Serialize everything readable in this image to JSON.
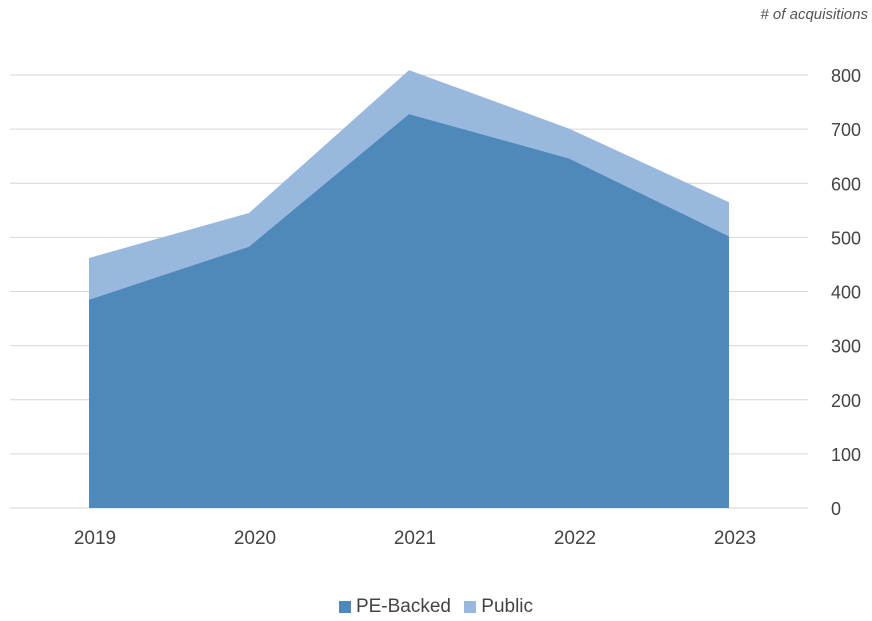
{
  "chart_data": {
    "type": "area",
    "stacked": true,
    "ylabel": "# of acquisitions",
    "xlabel": "",
    "title": "",
    "categories": [
      "2019",
      "2020",
      "2021",
      "2022",
      "2023"
    ],
    "ylim": [
      0,
      800
    ],
    "yticks": [
      "0",
      "100",
      "200",
      "300",
      "400",
      "500",
      "600",
      "700",
      "800"
    ],
    "y_axis_side": "right",
    "grid": true,
    "legend_position": "bottom-center",
    "series": [
      {
        "name": "PE-Backed",
        "values": [
          385,
          483,
          728,
          646,
          502
        ],
        "color": "#4f88bb"
      },
      {
        "name": "Public",
        "values": [
          77,
          62,
          81,
          55,
          63
        ],
        "color": "#98b8de"
      }
    ]
  }
}
